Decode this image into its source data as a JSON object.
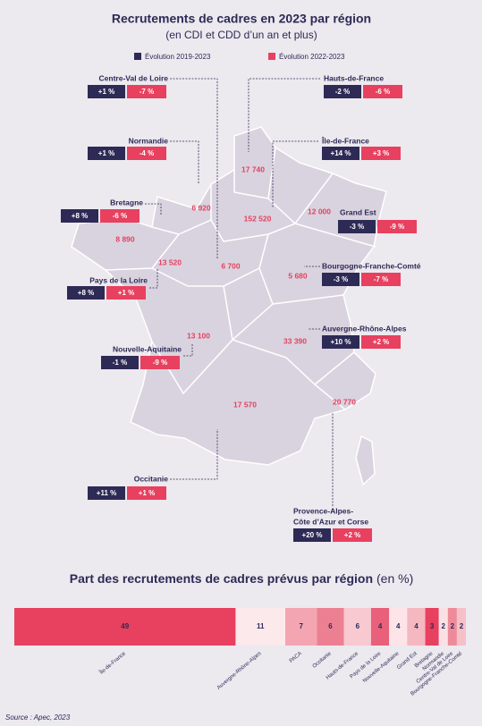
{
  "header": {
    "title": "Recrutements de cadres en 2023 par région",
    "subtitle": "(en CDI et CDD d’un an et plus)"
  },
  "legend": {
    "items": [
      {
        "label": "Évolution 2019-2023",
        "color": "#2d2a55"
      },
      {
        "label": "Évolution 2022-2023",
        "color": "#e8405f"
      }
    ]
  },
  "map": {
    "regions": [
      {
        "name_lines": [
          "Centre-Val de Loire"
        ],
        "recruitments": "6 700",
        "evolution_2019_2023": "+1 %",
        "evolution_2022_2023": "-7 %"
      },
      {
        "name_lines": [
          "Hauts-de-France"
        ],
        "recruitments": "17 740",
        "evolution_2019_2023": "-2 %",
        "evolution_2022_2023": "-6 %"
      },
      {
        "name_lines": [
          "Normandie"
        ],
        "recruitments": "6 920",
        "evolution_2019_2023": "+1 %",
        "evolution_2022_2023": "-4 %"
      },
      {
        "name_lines": [
          "Île-de-France"
        ],
        "recruitments": "152 520",
        "evolution_2019_2023": "+14 %",
        "evolution_2022_2023": "+3 %"
      },
      {
        "name_lines": [
          "Bretagne"
        ],
        "recruitments": "8 890",
        "evolution_2019_2023": "+8 %",
        "evolution_2022_2023": "-6 %"
      },
      {
        "name_lines": [
          "Grand Est"
        ],
        "recruitments": "12 000",
        "evolution_2019_2023": "-3 %",
        "evolution_2022_2023": "-9 %"
      },
      {
        "name_lines": [
          "Pays de la Loire"
        ],
        "recruitments": "13 520",
        "evolution_2019_2023": "+8 %",
        "evolution_2022_2023": "+1 %"
      },
      {
        "name_lines": [
          "Bourgogne-Franche-Comté"
        ],
        "recruitments": "5 680",
        "evolution_2019_2023": "-3 %",
        "evolution_2022_2023": "-7 %"
      },
      {
        "name_lines": [
          "Auvergne-Rhône-Alpes"
        ],
        "recruitments": "33 390",
        "evolution_2019_2023": "+10 %",
        "evolution_2022_2023": "+2 %"
      },
      {
        "name_lines": [
          "Nouvelle-Aquitaine"
        ],
        "recruitments": "13 100",
        "evolution_2019_2023": "-1 %",
        "evolution_2022_2023": "-9 %"
      },
      {
        "name_lines": [
          "Occitanie"
        ],
        "recruitments": "17 570",
        "evolution_2019_2023": "+11 %",
        "evolution_2022_2023": "+1 %"
      },
      {
        "name_lines": [
          "Provence-Alpes-",
          "Côte d’Azur et Corse"
        ],
        "recruitments": "20 770",
        "evolution_2019_2023": "+20 %",
        "evolution_2022_2023": "+2 %"
      }
    ]
  },
  "chart_data": {
    "type": "stacked-bar",
    "title": "Part des recrutements de cadres prévus par région",
    "unit": "(en %)",
    "categories": [
      "Île-de-France",
      "Auvergne-Rhône-Alpes",
      "PACA",
      "Occitanie",
      "Hauts-de-France",
      "Pays de la Loire",
      "Nouvelle-Aquitaine",
      "Grand Est",
      "Bretagne",
      "Normandie",
      "Centre-Val de Loire",
      "Bourgogne-Franche-Comté"
    ],
    "values": [
      49,
      11,
      7,
      6,
      6,
      4,
      4,
      4,
      3,
      2,
      2,
      2
    ],
    "colors": [
      "#e8405f",
      "#fce9ec",
      "#f3a6b1",
      "#ec8092",
      "#f8c9d0",
      "#e9607a",
      "#fce4e8",
      "#f5b7c0",
      "#e8405f",
      "#fbe1e5",
      "#ee8b9b",
      "#f6c0c8"
    ],
    "xlim": [
      0,
      100
    ]
  },
  "source": "Source : Apec, 2023"
}
